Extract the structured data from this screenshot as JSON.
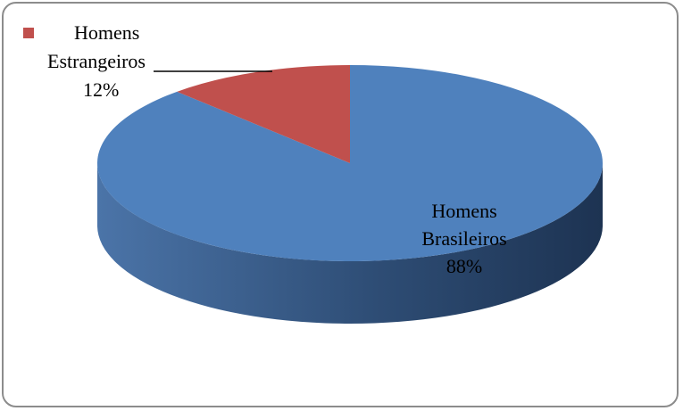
{
  "chart_data": {
    "type": "pie",
    "style": "3d",
    "title": "",
    "slices": [
      {
        "label_lines": [
          "Homens",
          "Brasileiros"
        ],
        "percent_label": "88%",
        "value": 88,
        "color": "#4f81bd",
        "side_color": "#3a5f8f"
      },
      {
        "label_lines": [
          "Homens",
          "Estrangeiros"
        ],
        "percent_label": "12%",
        "value": 12,
        "color": "#c0504d",
        "side_color": "#8c3a38"
      }
    ],
    "legend": {
      "position": "top-left",
      "marker_color": "#c0504d",
      "label": "Homens"
    }
  }
}
